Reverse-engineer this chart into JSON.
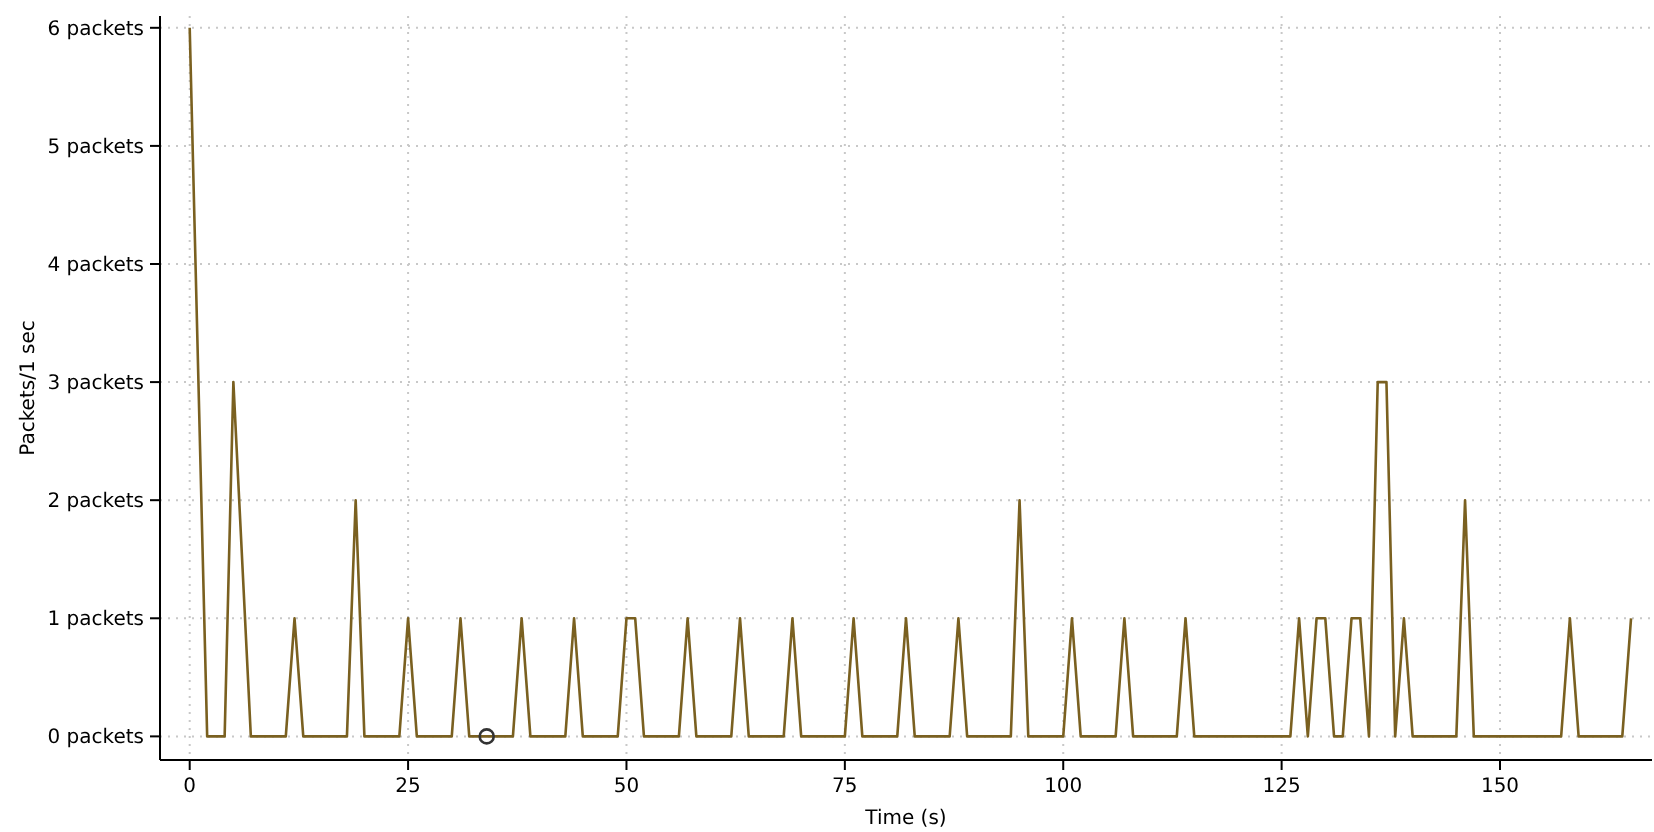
{
  "chart_data": {
    "type": "line",
    "xlabel": "Time (s)",
    "ylabel": "Packets/1 sec",
    "xlim": [
      -3.4,
      167.4
    ],
    "xticks": [
      0,
      25,
      50,
      75,
      100,
      125,
      150
    ],
    "ylim": [
      -0.2,
      6.1
    ],
    "yticks": [
      {
        "value": 0,
        "label": "0 packets"
      },
      {
        "value": 1,
        "label": "1 packets"
      },
      {
        "value": 2,
        "label": "2 packets"
      },
      {
        "value": 3,
        "label": "3 packets"
      },
      {
        "value": 4,
        "label": "4 packets"
      },
      {
        "value": 5,
        "label": "5 packets"
      },
      {
        "value": 6,
        "label": "6 packets"
      }
    ],
    "grid": true,
    "marker": "none",
    "line_style": "solid",
    "series": [
      {
        "color": "#7a6020",
        "x": [
          0,
          2,
          4,
          5,
          7,
          11,
          12,
          13,
          18,
          19,
          20,
          24,
          25,
          26,
          30,
          31,
          32,
          37,
          38,
          39,
          43,
          44,
          45,
          49,
          50,
          51,
          52,
          56,
          57,
          58,
          62,
          63,
          64,
          68,
          69,
          70,
          75,
          76,
          77,
          81,
          82,
          83,
          87,
          88,
          89,
          94,
          95,
          96,
          100,
          101,
          102,
          106,
          107,
          108,
          113,
          114,
          115,
          126,
          127,
          128,
          129,
          130,
          131,
          132,
          133,
          134,
          135,
          136,
          137,
          138,
          139,
          140,
          145,
          146,
          147,
          157,
          158,
          159,
          164,
          165
        ],
        "values": [
          6,
          0,
          0,
          3,
          0,
          0,
          1,
          0,
          0,
          2,
          0,
          0,
          1,
          0,
          0,
          1,
          0,
          0,
          1,
          0,
          0,
          1,
          0,
          0,
          1,
          1,
          0,
          0,
          1,
          0,
          0,
          1,
          0,
          0,
          1,
          0,
          0,
          1,
          0,
          0,
          1,
          0,
          0,
          1,
          0,
          0,
          2,
          0,
          0,
          1,
          0,
          0,
          1,
          0,
          0,
          1,
          0,
          0,
          1,
          0,
          1,
          1,
          0,
          0,
          1,
          1,
          0,
          3,
          3,
          0,
          1,
          0,
          0,
          2,
          0,
          0,
          1,
          0,
          0,
          1
        ]
      },
      {
        "type": "scatter",
        "marker": "circle",
        "color": "#333333",
        "x": [
          34
        ],
        "values": [
          0
        ]
      }
    ]
  }
}
